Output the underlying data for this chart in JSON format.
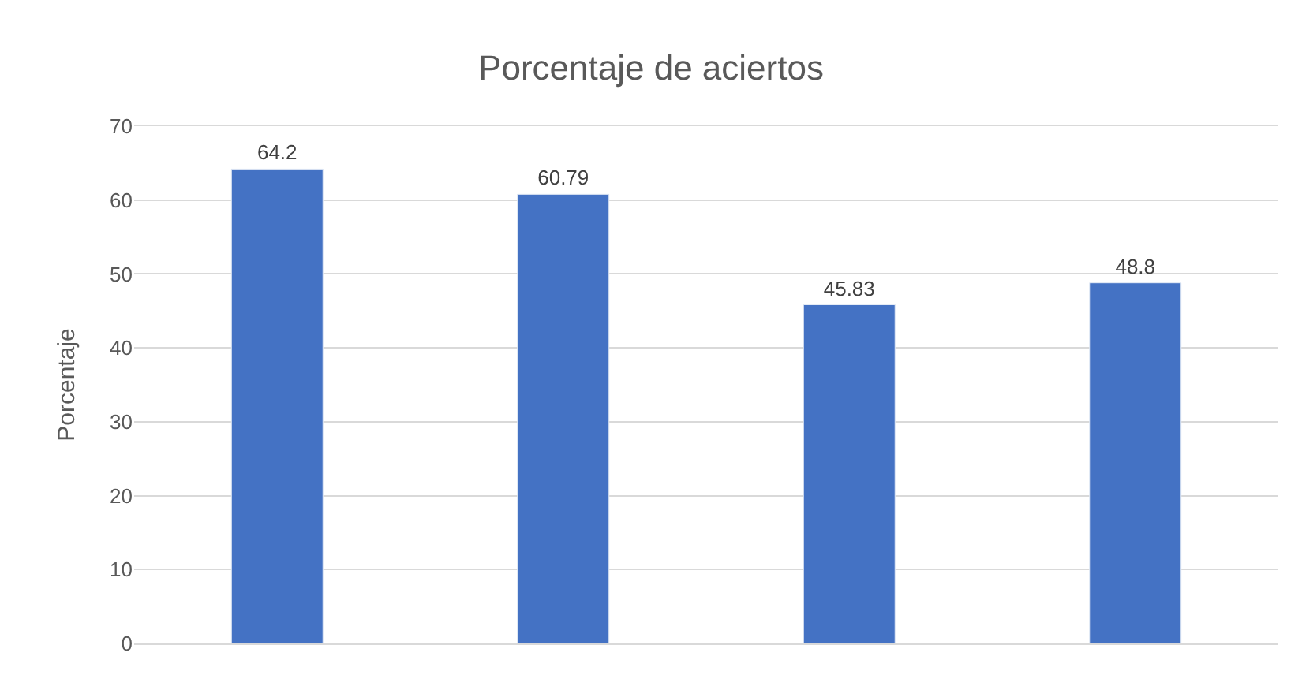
{
  "chart_data": {
    "type": "bar",
    "title": "Porcentaje de aciertos",
    "ylabel": "Porcentaje",
    "categories": [
      null,
      null,
      null,
      null
    ],
    "values": [
      64.2,
      60.79,
      45.83,
      48.8
    ],
    "color": "#4472c4",
    "ylim": [
      0,
      70
    ],
    "yticks": [
      0,
      10,
      20,
      30,
      40,
      50,
      60,
      70
    ],
    "grid": "y",
    "data_labels": true,
    "tick_labels": "y"
  }
}
